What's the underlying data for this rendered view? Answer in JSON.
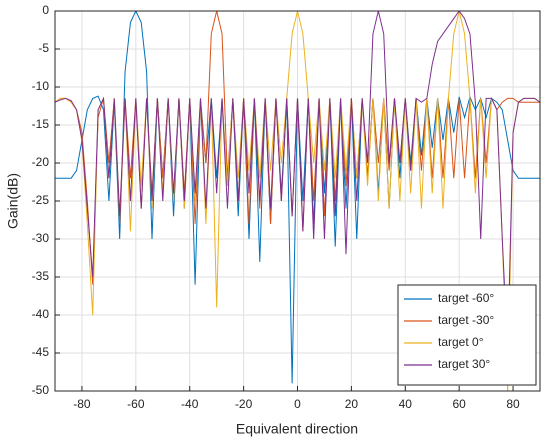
{
  "chart_data": {
    "type": "line",
    "xlabel": "Equivalent direction",
    "ylabel": "Gain(dB)",
    "x": [
      -90,
      -88,
      -86,
      -84,
      -82,
      -80,
      -78,
      -76,
      -74,
      -72,
      -70,
      -68,
      -66,
      -64,
      -62,
      -60,
      -58,
      -56,
      -54,
      -52,
      -50,
      -48,
      -46,
      -44,
      -42,
      -40,
      -38,
      -36,
      -34,
      -32,
      -30,
      -28,
      -26,
      -24,
      -22,
      -20,
      -18,
      -16,
      -14,
      -12,
      -10,
      -8,
      -6,
      -4,
      -2,
      0,
      2,
      4,
      6,
      8,
      10,
      12,
      14,
      16,
      18,
      20,
      22,
      24,
      26,
      28,
      30,
      32,
      34,
      36,
      38,
      40,
      42,
      44,
      46,
      48,
      50,
      52,
      54,
      56,
      58,
      60,
      62,
      64,
      66,
      68,
      70,
      72,
      74,
      76,
      78,
      80,
      82,
      84,
      86,
      88,
      90
    ],
    "series": [
      {
        "name": "target -60°",
        "color": "#0072bd",
        "values": [
          -22,
          -22,
          -22,
          -22,
          -21,
          -17,
          -13,
          -11.5,
          -11.2,
          -13,
          -25,
          -12,
          -30,
          -8,
          -1.5,
          0,
          -1.5,
          -8,
          -30,
          -11.5,
          -22,
          -11.5,
          -27,
          -11.5,
          -26,
          -11.5,
          -36,
          -11.5,
          -20,
          -11.5,
          -22,
          -11.5,
          -23,
          -11.5,
          -27,
          -11.5,
          -30,
          -11.5,
          -33,
          -11.5,
          -28,
          -11.5,
          -24,
          -11.5,
          -49,
          -11.5,
          -25,
          -11.5,
          -28,
          -11.5,
          -24,
          -11.5,
          -31,
          -11.5,
          -26,
          -11.5,
          -30,
          -11.5,
          -22,
          -11.5,
          -24,
          -11.5,
          -26,
          -11.5,
          -22,
          -11.5,
          -20,
          -11.5,
          -19,
          -11.5,
          -18,
          -11.5,
          -17,
          -11.5,
          -16,
          -11.3,
          -14,
          -11.3,
          -13,
          -11.5,
          -14,
          -11.5,
          -12,
          -13,
          -17,
          -21,
          -22,
          -22,
          -22,
          -22,
          -22
        ]
      },
      {
        "name": "target -30°",
        "color": "#d95319",
        "values": [
          -12,
          -11.5,
          -11.5,
          -12,
          -13,
          -16,
          -25,
          -36,
          -14,
          -11.5,
          -20,
          -11.5,
          -28,
          -11.5,
          -22,
          -11.5,
          -26,
          -11.5,
          -24,
          -11.5,
          -22,
          -11.5,
          -25,
          -11.5,
          -24,
          -11.5,
          -28,
          -12,
          -20,
          -3,
          0,
          -3,
          -22,
          -11.5,
          -25,
          -11.5,
          -28,
          -11.5,
          -26,
          -11.5,
          -28,
          -11.5,
          -25,
          -11.5,
          -27,
          -11.5,
          -29,
          -11.5,
          -25,
          -11.5,
          -27,
          -11.5,
          -25,
          -11.5,
          -23,
          -11.5,
          -22,
          -11.5,
          -22,
          -11.5,
          -20,
          -11.5,
          -21,
          -11.5,
          -20,
          -11.5,
          -21,
          -11.5,
          -21,
          -11.5,
          -22,
          -11.5,
          -22,
          -11.5,
          -22,
          -11.5,
          -22,
          -11.5,
          -22,
          -11.5,
          -20,
          -11.5,
          -13,
          -12,
          -11.5,
          -11.5,
          -12,
          -12,
          -12,
          -12,
          -12
        ]
      },
      {
        "name": "target 0°",
        "color": "#edb120",
        "values": [
          -12,
          -11.5,
          -11.5,
          -12,
          -13,
          -17,
          -28,
          -40,
          -13,
          -11.5,
          -22,
          -11.5,
          -27,
          -11.5,
          -29,
          -11.5,
          -23,
          -11.5,
          -26,
          -11.5,
          -24,
          -11.5,
          -25,
          -11.5,
          -26,
          -11.5,
          -25,
          -11.5,
          -28,
          -11.5,
          -39,
          -11.5,
          -23,
          -11.5,
          -22,
          -11.5,
          -21,
          -11.5,
          -22,
          -11.5,
          -21,
          -11.5,
          -20,
          -11.5,
          -3,
          0,
          -3,
          -11.5,
          -20,
          -11.5,
          -21,
          -11.5,
          -22,
          -11.5,
          -21,
          -11.5,
          -22,
          -11.5,
          -23,
          -11.5,
          -25,
          -11.5,
          -26,
          -11.5,
          -25,
          -11.5,
          -24,
          -11.5,
          -26,
          -11.5,
          -24,
          -11.5,
          -26,
          -11.5,
          -3,
          0,
          -3,
          -11.5,
          -24,
          -11.5,
          -22,
          -11.5,
          -13,
          -30,
          -50,
          -16,
          -12,
          -11.5,
          -11.5,
          -11.5,
          -12
        ]
      },
      {
        "name": "target 30°",
        "color": "#7e2f8e",
        "values": [
          -12,
          -11.7,
          -11.5,
          -11.8,
          -13,
          -17,
          -26,
          -35,
          -13,
          -11.5,
          -22,
          -11.5,
          -27,
          -11.5,
          -25,
          -11.5,
          -26,
          -11.5,
          -25,
          -11.5,
          -25,
          -11.5,
          -24,
          -11.5,
          -25,
          -11.5,
          -24,
          -11.5,
          -26,
          -11.5,
          -24,
          -11.5,
          -26,
          -11.5,
          -25,
          -11.5,
          -24,
          -11.5,
          -25,
          -11.5,
          -26,
          -11.5,
          -25,
          -11.5,
          -27,
          -11.5,
          -29,
          -11.5,
          -30,
          -11.5,
          -30,
          -11.5,
          -27,
          -11.5,
          -32,
          -11.5,
          -25,
          -11.5,
          -20,
          -3,
          0,
          -3,
          -20,
          -11.5,
          -20,
          -11.5,
          -21,
          -11.5,
          -12,
          -11.5,
          -7,
          -4,
          -3,
          -2,
          -1,
          0,
          -1,
          -3,
          -12,
          -30,
          -11.5,
          -11.5,
          -13,
          -30,
          -45,
          -16,
          -12,
          -11.5,
          -11.5,
          -11.5,
          -12
        ]
      }
    ],
    "xlim": [
      -90,
      90
    ],
    "xticks": [
      -80,
      -60,
      -40,
      -20,
      0,
      20,
      40,
      60,
      80
    ],
    "ylim": [
      -50,
      0
    ],
    "yticks": [
      0,
      -5,
      -10,
      -15,
      -20,
      -25,
      -30,
      -35,
      -40,
      -45,
      -50
    ],
    "grid": true,
    "legend": "lower right"
  }
}
